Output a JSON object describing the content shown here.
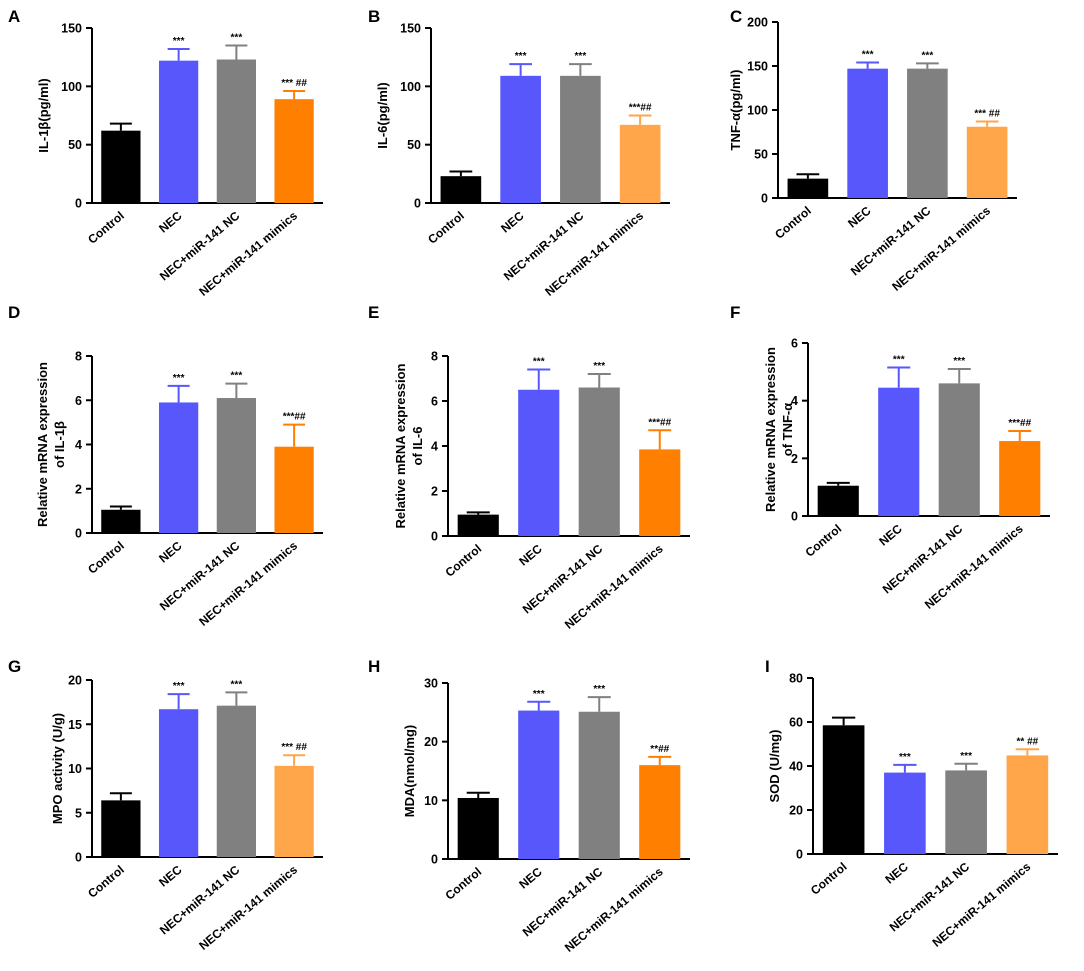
{
  "figure": {
    "colors": {
      "control": "#000000",
      "nec": "#5757fb",
      "nec_nc": "#808080",
      "mimics_dark": "#ff7f00",
      "mimics_light": "#ffa54a"
    }
  },
  "chart_data": [
    {
      "panel": "A",
      "type": "bar",
      "ylabel": "IL-1β(pg/ml)",
      "ylim": [
        0,
        150
      ],
      "yticks": [
        0,
        50,
        100,
        150
      ],
      "categories": [
        "Control",
        "NEC",
        "NEC+miR-141 NC",
        "NEC+miR-141 mimics"
      ],
      "values": [
        62,
        122,
        123,
        89
      ],
      "errors": [
        6,
        10,
        12,
        7
      ],
      "significance": [
        "",
        "***",
        "***",
        "*** ##"
      ],
      "colors": [
        "#000000",
        "#5757fb",
        "#808080",
        "#ff7f00"
      ]
    },
    {
      "panel": "B",
      "type": "bar",
      "ylabel": "IL-6(pg/ml)",
      "ylim": [
        0,
        150
      ],
      "yticks": [
        0,
        50,
        100,
        150
      ],
      "categories": [
        "Control",
        "NEC",
        "NEC+miR-141 NC",
        "NEC+miR-141 mimics"
      ],
      "values": [
        23,
        109,
        109,
        67
      ],
      "errors": [
        4,
        10,
        10,
        8
      ],
      "significance": [
        "",
        "***",
        "***",
        "***##"
      ],
      "colors": [
        "#000000",
        "#5757fb",
        "#808080",
        "#ffa54a"
      ]
    },
    {
      "panel": "C",
      "type": "bar",
      "ylabel": "TNF-α(pg/ml)",
      "ylim": [
        0,
        200
      ],
      "yticks": [
        0,
        50,
        100,
        150,
        200
      ],
      "categories": [
        "Control",
        "NEC",
        "NEC+miR-141 NC",
        "NEC+miR-141 mimics"
      ],
      "values": [
        22,
        147,
        147,
        81
      ],
      "errors": [
        5,
        7,
        6,
        6
      ],
      "significance": [
        "",
        "***",
        "***",
        "*** ##"
      ],
      "colors": [
        "#000000",
        "#5757fb",
        "#808080",
        "#ffa54a"
      ]
    },
    {
      "panel": "D",
      "type": "bar",
      "ylabel": [
        "Relative  mRNA expression",
        "of IL-1β"
      ],
      "ylim": [
        0,
        8
      ],
      "yticks": [
        0,
        2,
        4,
        6,
        8
      ],
      "categories": [
        "Control",
        "NEC",
        "NEC+miR-141 NC",
        "NEC+miR-141 mimics"
      ],
      "values": [
        1.05,
        5.9,
        6.1,
        3.9
      ],
      "errors": [
        0.15,
        0.75,
        0.65,
        1.0
      ],
      "significance": [
        "",
        "***",
        "***",
        "***##"
      ],
      "colors": [
        "#000000",
        "#5757fb",
        "#808080",
        "#ff7f00"
      ]
    },
    {
      "panel": "E",
      "type": "bar",
      "ylabel": [
        "Relative  mRNA expression",
        "of IL-6"
      ],
      "ylim": [
        0,
        8
      ],
      "yticks": [
        0,
        2,
        4,
        6,
        8
      ],
      "categories": [
        "Control",
        "NEC",
        "NEC+miR-141 NC",
        "NEC+miR-141 mimics"
      ],
      "values": [
        0.95,
        6.5,
        6.6,
        3.85
      ],
      "errors": [
        0.1,
        0.9,
        0.6,
        0.85
      ],
      "significance": [
        "",
        "***",
        "***",
        "***##"
      ],
      "colors": [
        "#000000",
        "#5757fb",
        "#808080",
        "#ff7f00"
      ]
    },
    {
      "panel": "F",
      "type": "bar",
      "ylabel": [
        "Relative  mRNA expression",
        "of TNF-α"
      ],
      "ylim": [
        0,
        6
      ],
      "yticks": [
        0,
        2,
        4,
        6
      ],
      "categories": [
        "Control",
        "NEC",
        "NEC+miR-141 NC",
        "NEC+miR-141 mimics"
      ],
      "values": [
        1.05,
        4.45,
        4.6,
        2.6
      ],
      "errors": [
        0.1,
        0.7,
        0.5,
        0.35
      ],
      "significance": [
        "",
        "***",
        "***",
        "***##"
      ],
      "colors": [
        "#000000",
        "#5757fb",
        "#808080",
        "#ff7f00"
      ]
    },
    {
      "panel": "G",
      "type": "bar",
      "ylabel": "MPO activity (U/g)",
      "ylim": [
        0,
        20
      ],
      "yticks": [
        0,
        5,
        10,
        15,
        20
      ],
      "categories": [
        "Control",
        "NEC",
        "NEC+miR-141 NC",
        "NEC+miR-141 mimics"
      ],
      "values": [
        6.4,
        16.7,
        17.1,
        10.3
      ],
      "errors": [
        0.8,
        1.7,
        1.5,
        1.2
      ],
      "significance": [
        "",
        "***",
        "***",
        "*** ##"
      ],
      "colors": [
        "#000000",
        "#5757fb",
        "#808080",
        "#ffa54a"
      ]
    },
    {
      "panel": "H",
      "type": "bar",
      "ylabel": "MDA(nmol/mg)",
      "ylim": [
        0,
        30
      ],
      "yticks": [
        0,
        10,
        20,
        30
      ],
      "categories": [
        "Control",
        "NEC",
        "NEC+miR-141 NC",
        "NEC+miR-141 mimics"
      ],
      "values": [
        10.4,
        25.3,
        25.1,
        16.0
      ],
      "errors": [
        0.9,
        1.5,
        2.5,
        1.4
      ],
      "significance": [
        "",
        "***",
        "***",
        "**##"
      ],
      "colors": [
        "#000000",
        "#5757fb",
        "#808080",
        "#ff7f00"
      ]
    },
    {
      "panel": "I",
      "type": "bar",
      "ylabel": "SOD  (U/mg)",
      "ylim": [
        0,
        80
      ],
      "yticks": [
        0,
        20,
        40,
        60,
        80
      ],
      "categories": [
        "Control",
        "NEC",
        "NEC+miR-141 NC",
        "NEC+miR-141 mimics"
      ],
      "values": [
        58.5,
        37,
        38,
        44.8
      ],
      "errors": [
        3.5,
        3.5,
        3,
        2.8
      ],
      "significance": [
        "",
        "***",
        "***",
        "** ##"
      ],
      "colors": [
        "#000000",
        "#5757fb",
        "#808080",
        "#ffa54a"
      ]
    }
  ]
}
